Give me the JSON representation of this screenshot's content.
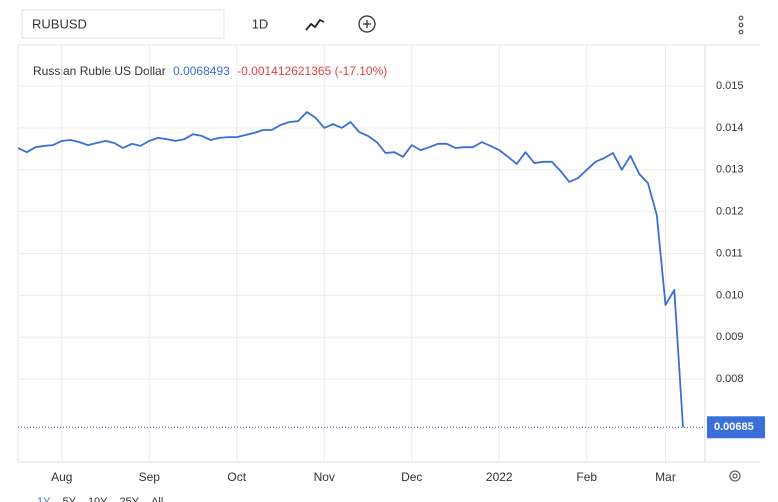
{
  "toolbar": {
    "symbol": "RUBUSD",
    "interval": "1D"
  },
  "ranges": [
    "1Y",
    "5Y",
    "10Y",
    "25Y",
    "All"
  ],
  "chart_data": {
    "type": "line",
    "title": "Russian Ruble US Dollar",
    "last_value_text": "0.0068493",
    "change_text": "-0.001412621365 (-17.10%)",
    "last_label": "0.00685",
    "categories": [
      null,
      null,
      null,
      null,
      null,
      "Aug",
      null,
      null,
      null,
      null,
      null,
      null,
      null,
      null,
      null,
      "Sep",
      null,
      null,
      null,
      null,
      null,
      null,
      null,
      null,
      null,
      "Oct",
      null,
      null,
      null,
      null,
      null,
      null,
      null,
      null,
      null,
      "Nov",
      null,
      null,
      null,
      null,
      null,
      null,
      null,
      null,
      null,
      "Dec",
      null,
      null,
      null,
      null,
      null,
      null,
      null,
      null,
      null,
      "2022",
      null,
      null,
      null,
      null,
      null,
      null,
      null,
      null,
      null,
      "Feb",
      null,
      null,
      null,
      null,
      null,
      null,
      null,
      null,
      "Mar",
      null,
      null
    ],
    "series": [
      {
        "name": "RUBUSD",
        "color": "#3a6fd8",
        "values": [
          0.01352,
          0.01342,
          0.01354,
          0.01357,
          0.01359,
          0.01369,
          0.01371,
          0.01366,
          0.01359,
          0.01364,
          0.01369,
          0.01364,
          0.01352,
          0.01362,
          0.01357,
          0.01369,
          0.01376,
          0.01373,
          0.01369,
          0.01373,
          0.01385,
          0.01381,
          0.01371,
          0.01376,
          0.01378,
          0.01378,
          0.01383,
          0.01388,
          0.01395,
          0.01395,
          0.01407,
          0.01414,
          0.01416,
          0.01438,
          0.01424,
          0.014,
          0.01409,
          0.014,
          0.01414,
          0.0139,
          0.01381,
          0.01366,
          0.0134,
          0.01342,
          0.01331,
          0.01359,
          0.01347,
          0.01354,
          0.01362,
          0.01362,
          0.01352,
          0.01354,
          0.01354,
          0.01366,
          0.01357,
          0.01347,
          0.01331,
          0.01314,
          0.01342,
          0.01316,
          0.01319,
          0.01319,
          0.01297,
          0.01271,
          0.0128,
          0.013,
          0.01319,
          0.01328,
          0.0134,
          0.013,
          0.01333,
          0.0129,
          0.01268,
          0.01192,
          0.00977,
          0.01013,
          0.0068493
        ]
      }
    ],
    "ylim": [
      0.00602,
      0.01598
    ],
    "yticks": [
      {
        "value": 0.008,
        "label": "0.008"
      },
      {
        "value": 0.009,
        "label": "0.009"
      },
      {
        "value": 0.01,
        "label": "0.010"
      },
      {
        "value": 0.011,
        "label": "0.011"
      },
      {
        "value": 0.012,
        "label": "0.012"
      },
      {
        "value": 0.013,
        "label": "0.013"
      },
      {
        "value": 0.014,
        "label": "0.014"
      },
      {
        "value": 0.015,
        "label": "0.015"
      }
    ],
    "grid": true
  }
}
